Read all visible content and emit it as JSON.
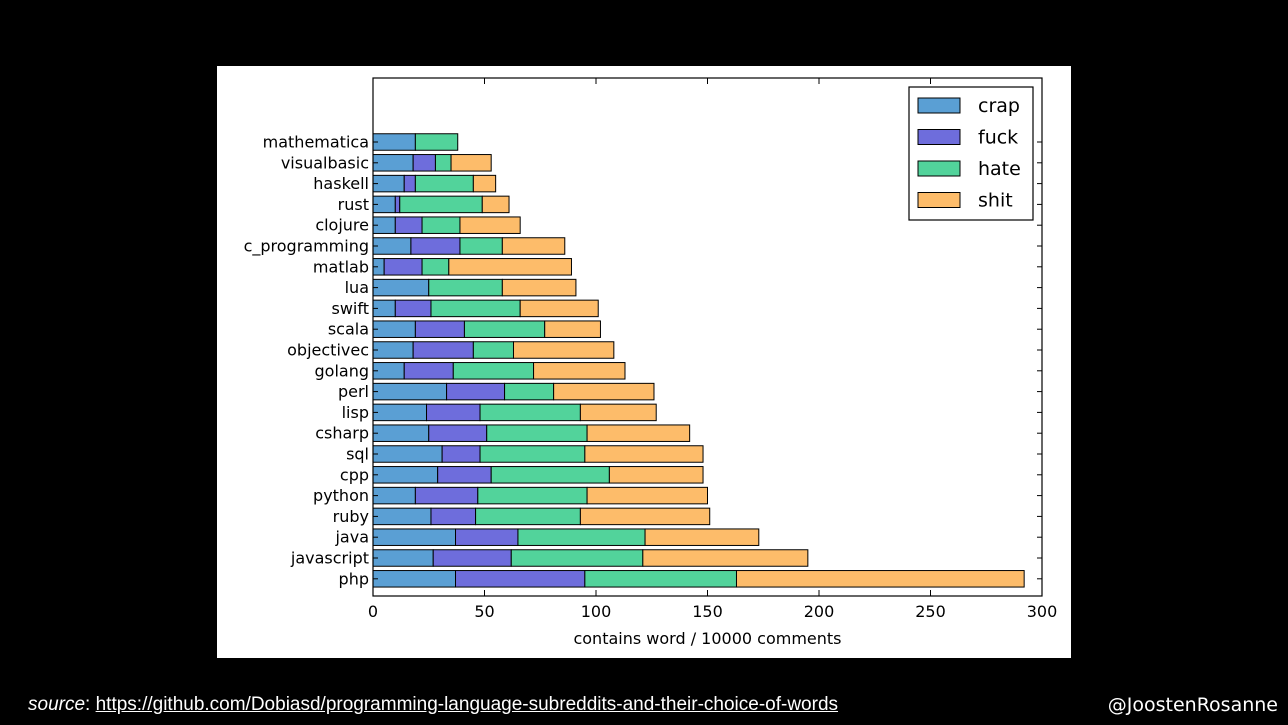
{
  "chart_data": {
    "type": "bar",
    "orientation": "horizontal",
    "stacked": true,
    "title": "",
    "xlabel": "contains word / 10000 comments",
    "ylabel": "",
    "xlim": [
      0,
      300
    ],
    "x_ticks": [
      0,
      50,
      100,
      150,
      200,
      250,
      300
    ],
    "grid": false,
    "legend_position": "top-right",
    "categories": [
      "mathematica",
      "visualbasic",
      "haskell",
      "rust",
      "clojure",
      "c_programming",
      "matlab",
      "lua",
      "swift",
      "scala",
      "objectivec",
      "golang",
      "perl",
      "lisp",
      "csharp",
      "sql",
      "cpp",
      "python",
      "ruby",
      "java",
      "javascript",
      "php"
    ],
    "series": [
      {
        "name": "crap",
        "color": "#5a9fd4",
        "values": [
          19,
          18,
          14,
          10,
          10,
          17,
          5,
          25,
          10,
          19,
          18,
          14,
          33,
          24,
          25,
          31,
          29,
          19,
          26,
          37,
          27,
          37
        ]
      },
      {
        "name": "fuck",
        "color": "#6e6ddc",
        "values": [
          0,
          10,
          5,
          2,
          12,
          22,
          17,
          0,
          16,
          22,
          27,
          22,
          26,
          24,
          26,
          17,
          24,
          28,
          20,
          28,
          35,
          58
        ]
      },
      {
        "name": "hate",
        "color": "#52d39b",
        "values": [
          19,
          7,
          26,
          37,
          17,
          19,
          12,
          33,
          40,
          36,
          18,
          36,
          22,
          45,
          45,
          47,
          53,
          49,
          47,
          57,
          59,
          68
        ]
      },
      {
        "name": "shit",
        "color": "#fdbc6a",
        "values": [
          0,
          18,
          10,
          12,
          27,
          28,
          55,
          33,
          35,
          25,
          45,
          41,
          45,
          34,
          46,
          53,
          42,
          54,
          58,
          51,
          74,
          129
        ]
      }
    ]
  },
  "footer": {
    "source_label": "source",
    "source_sep": ": ",
    "source_url": "https://github.com/Dobiasd/programming-language-subreddits-and-their-choice-of-words",
    "handle": "@JoostenRosanne"
  }
}
